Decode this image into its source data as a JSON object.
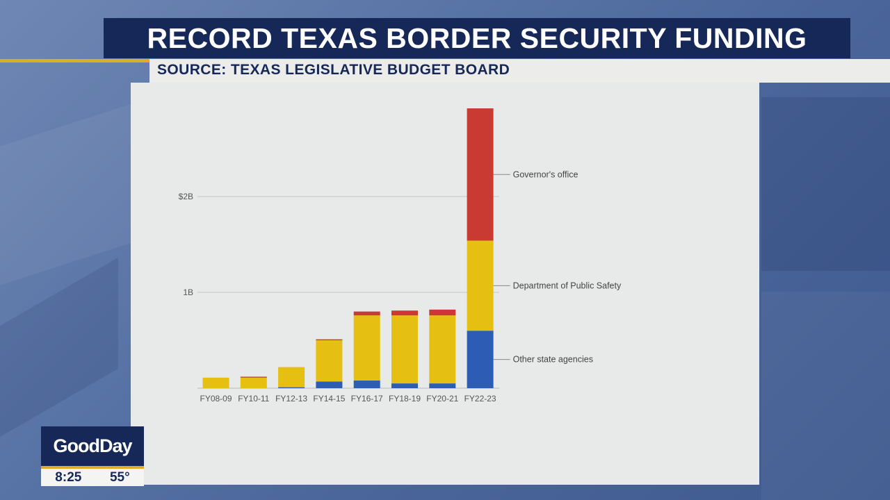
{
  "header": {
    "title": "RECORD TEXAS BORDER SECURITY FUNDING",
    "source": "SOURCE: TEXAS LEGISLATIVE BUDGET BOARD"
  },
  "chart_data": {
    "type": "bar",
    "stacked": true,
    "categories": [
      "FY08-09",
      "FY10-11",
      "FY12-13",
      "FY14-15",
      "FY16-17",
      "FY18-19",
      "FY20-21",
      "FY22-23"
    ],
    "y_ticks": [
      {
        "value": 1000000000,
        "label": "1B"
      },
      {
        "value": 2000000000,
        "label": "$2B"
      }
    ],
    "ylim": [
      0,
      3000000000
    ],
    "grid": true,
    "series": [
      {
        "name": "Other state agencies",
        "color": "#2c5cb4",
        "values": [
          0,
          0,
          10000000,
          70000000,
          80000000,
          50000000,
          50000000,
          600000000
        ]
      },
      {
        "name": "Department of Public Safety",
        "color": "#e6bf13",
        "values": [
          110000000,
          110000000,
          210000000,
          430000000,
          680000000,
          710000000,
          710000000,
          940000000
        ]
      },
      {
        "name": "Governor's office",
        "color": "#c93a33",
        "values": [
          0,
          10000000,
          0,
          10000000,
          40000000,
          50000000,
          60000000,
          1380000000
        ]
      }
    ],
    "series_label_position": "right of last bar"
  },
  "branding": {
    "logo": "GoodDay",
    "time": "8:25",
    "temperature": "55°"
  }
}
